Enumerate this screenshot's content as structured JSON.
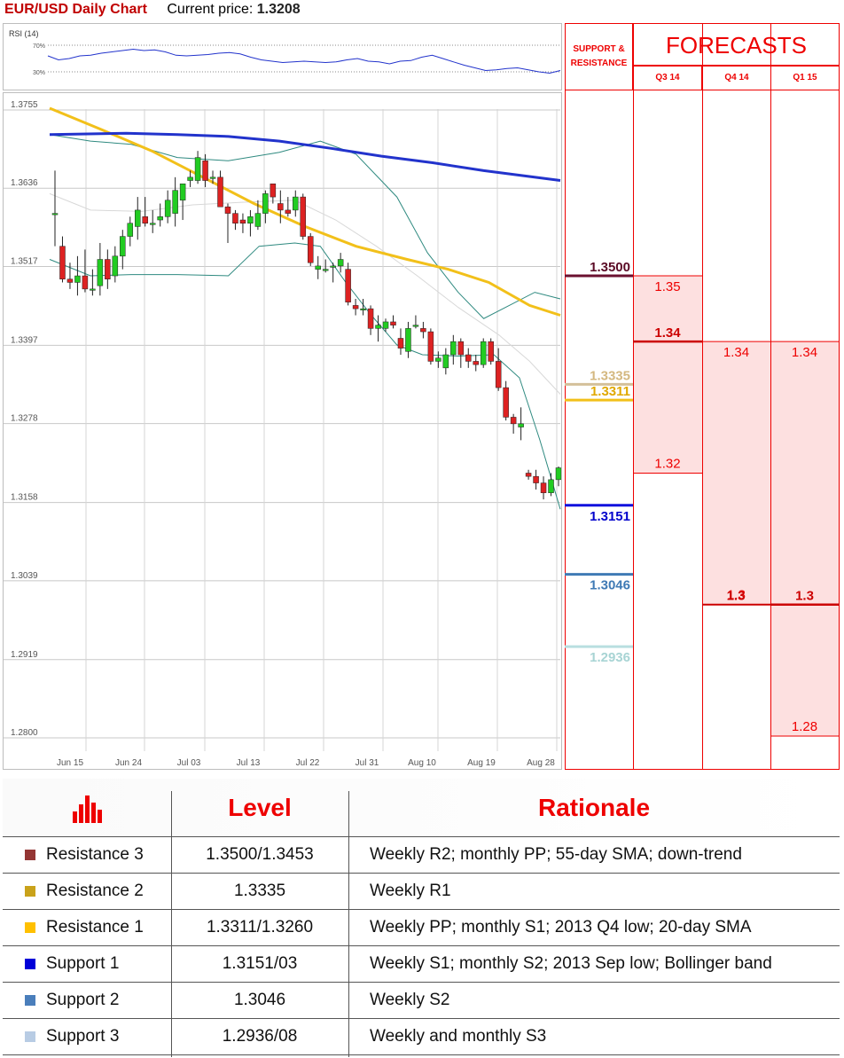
{
  "header": {
    "title": "EUR/USD Daily Chart",
    "current_label": "Current price:",
    "current_value": "1.3208"
  },
  "rsi": {
    "label": "RSI (14)",
    "levels": [
      "70%",
      "30%"
    ]
  },
  "colors": {
    "accent_red": "#e00000",
    "candle_up": "#22cc22",
    "candle_down": "#dd2222",
    "sma20": "#d8d8d8",
    "sma55": "#f2c01a",
    "sma200": "#2233cc",
    "bollinger": "#2f8a80"
  },
  "chart_data": {
    "type": "candlestick",
    "title": "EUR/USD Daily Chart",
    "y_ticks": [
      "1.3755",
      "1.3636",
      "1.3517",
      "1.3397",
      "1.3278",
      "1.3158",
      "1.3039",
      "1.2919",
      "1.2800"
    ],
    "ylim": [
      1.28,
      1.3755
    ],
    "x_ticks": [
      "Jun 15",
      "Jun 24",
      "Jul 03",
      "Jul 13",
      "Jul 22",
      "Jul 31",
      "Aug 10",
      "Aug 19",
      "Aug 28"
    ],
    "grid": true,
    "candles": [
      [
        1.3595,
        1.366,
        1.3595,
        1.3545
      ],
      [
        1.3545,
        1.356,
        1.3495,
        1.349
      ],
      [
        1.3495,
        1.352,
        1.349,
        1.348
      ],
      [
        1.349,
        1.353,
        1.35,
        1.347
      ],
      [
        1.35,
        1.354,
        1.348,
        1.3475
      ],
      [
        1.348,
        1.351,
        1.348,
        1.347
      ],
      [
        1.3485,
        1.355,
        1.3525,
        1.347
      ],
      [
        1.3525,
        1.354,
        1.3495,
        1.348
      ],
      [
        1.35,
        1.3545,
        1.353,
        1.349
      ],
      [
        1.353,
        1.357,
        1.356,
        1.351
      ],
      [
        1.356,
        1.359,
        1.358,
        1.3545
      ],
      [
        1.3575,
        1.362,
        1.36,
        1.3555
      ],
      [
        1.359,
        1.362,
        1.358,
        1.3575
      ],
      [
        1.358,
        1.36,
        1.358,
        1.3565
      ],
      [
        1.3585,
        1.361,
        1.359,
        1.3575
      ],
      [
        1.359,
        1.363,
        1.3615,
        1.358
      ],
      [
        1.3595,
        1.365,
        1.363,
        1.3575
      ],
      [
        1.3615,
        1.364,
        1.364,
        1.3585
      ],
      [
        1.3645,
        1.366,
        1.365,
        1.3635
      ],
      [
        1.3645,
        1.369,
        1.368,
        1.364
      ],
      [
        1.3675,
        1.3685,
        1.3645,
        1.3635
      ],
      [
        1.365,
        1.366,
        1.365,
        1.364
      ],
      [
        1.365,
        1.366,
        1.3605,
        1.364
      ],
      [
        1.3605,
        1.361,
        1.3595,
        1.355
      ],
      [
        1.3595,
        1.36,
        1.358,
        1.357
      ],
      [
        1.3585,
        1.3595,
        1.358,
        1.3565
      ],
      [
        1.358,
        1.36,
        1.359,
        1.356
      ],
      [
        1.3575,
        1.3615,
        1.3595,
        1.357
      ],
      [
        1.3595,
        1.363,
        1.3625,
        1.358
      ],
      [
        1.364,
        1.364,
        1.362,
        1.361
      ],
      [
        1.361,
        1.363,
        1.36,
        1.358
      ],
      [
        1.36,
        1.362,
        1.3595,
        1.359
      ],
      [
        1.36,
        1.363,
        1.362,
        1.359
      ],
      [
        1.362,
        1.3625,
        1.356,
        1.3555
      ],
      [
        1.356,
        1.3565,
        1.352,
        1.3515
      ],
      [
        1.351,
        1.353,
        1.3515,
        1.3495
      ],
      [
        1.351,
        1.3525,
        1.351,
        1.3505
      ],
      [
        1.3515,
        1.352,
        1.3515,
        1.349
      ],
      [
        1.3515,
        1.3535,
        1.3525,
        1.3505
      ],
      [
        1.351,
        1.352,
        1.346,
        1.3455
      ],
      [
        1.3455,
        1.3465,
        1.345,
        1.344
      ],
      [
        1.345,
        1.3465,
        1.345,
        1.344
      ],
      [
        1.345,
        1.3455,
        1.342,
        1.341
      ],
      [
        1.342,
        1.344,
        1.3425,
        1.34
      ],
      [
        1.342,
        1.3435,
        1.343,
        1.3415
      ],
      [
        1.343,
        1.344,
        1.3425,
        1.342
      ],
      [
        1.3405,
        1.342,
        1.339,
        1.338
      ],
      [
        1.3385,
        1.343,
        1.342,
        1.3375
      ],
      [
        1.3425,
        1.344,
        1.3425,
        1.342
      ],
      [
        1.342,
        1.343,
        1.3415,
        1.3405
      ],
      [
        1.3415,
        1.342,
        1.337,
        1.3365
      ],
      [
        1.337,
        1.3385,
        1.3375,
        1.336
      ],
      [
        1.336,
        1.339,
        1.338,
        1.335
      ],
      [
        1.338,
        1.341,
        1.34,
        1.3365
      ],
      [
        1.34,
        1.3405,
        1.338,
        1.336
      ],
      [
        1.338,
        1.339,
        1.337,
        1.336
      ],
      [
        1.337,
        1.338,
        1.3365,
        1.3355
      ],
      [
        1.3365,
        1.3405,
        1.34,
        1.336
      ],
      [
        1.34,
        1.3405,
        1.337,
        1.3365
      ],
      [
        1.337,
        1.339,
        1.333,
        1.3325
      ],
      [
        1.333,
        1.334,
        1.3285,
        1.328
      ],
      [
        1.3285,
        1.329,
        1.3275,
        1.326
      ],
      [
        1.327,
        1.33,
        1.3275,
        1.325
      ],
      [
        1.32,
        1.3205,
        1.3195,
        1.319
      ],
      [
        1.3195,
        1.3205,
        1.3185,
        1.3175
      ],
      [
        1.3185,
        1.3195,
        1.317,
        1.316
      ],
      [
        1.317,
        1.32,
        1.319,
        1.3165
      ],
      [
        1.319,
        1.321,
        1.3208,
        1.318
      ]
    ],
    "sma200": [
      [
        0,
        1.3715
      ],
      [
        0.15,
        1.3717
      ],
      [
        0.25,
        1.3715
      ],
      [
        0.35,
        1.3712
      ],
      [
        0.45,
        1.3705
      ],
      [
        0.55,
        1.3694
      ],
      [
        0.65,
        1.3682
      ],
      [
        0.75,
        1.3672
      ],
      [
        0.85,
        1.366
      ],
      [
        1,
        1.3645
      ]
    ],
    "sma55": [
      [
        0,
        1.3755
      ],
      [
        0.1,
        1.3723
      ],
      [
        0.2,
        1.369
      ],
      [
        0.3,
        1.365
      ],
      [
        0.4,
        1.361
      ],
      [
        0.5,
        1.3575
      ],
      [
        0.6,
        1.3545
      ],
      [
        0.7,
        1.3525
      ],
      [
        0.78,
        1.351
      ],
      [
        0.86,
        1.349
      ],
      [
        0.94,
        1.3455
      ],
      [
        1,
        1.344
      ]
    ],
    "bollinger_upper": [
      [
        0,
        1.3715
      ],
      [
        0.08,
        1.3705
      ],
      [
        0.16,
        1.37
      ],
      [
        0.25,
        1.368
      ],
      [
        0.35,
        1.3675
      ],
      [
        0.45,
        1.3688
      ],
      [
        0.53,
        1.3705
      ],
      [
        0.6,
        1.3685
      ],
      [
        0.68,
        1.362
      ],
      [
        0.74,
        1.3535
      ],
      [
        0.8,
        1.3475
      ],
      [
        0.85,
        1.3435
      ],
      [
        0.9,
        1.3455
      ],
      [
        0.95,
        1.3475
      ],
      [
        1,
        1.3465
      ]
    ],
    "bollinger_lower": [
      [
        0,
        1.3525
      ],
      [
        0.08,
        1.35
      ],
      [
        0.16,
        1.3502
      ],
      [
        0.25,
        1.3502
      ],
      [
        0.35,
        1.35
      ],
      [
        0.41,
        1.3545
      ],
      [
        0.48,
        1.355
      ],
      [
        0.53,
        1.3545
      ],
      [
        0.58,
        1.349
      ],
      [
        0.63,
        1.344
      ],
      [
        0.68,
        1.3395
      ],
      [
        0.73,
        1.338
      ],
      [
        0.8,
        1.3378
      ],
      [
        0.87,
        1.338
      ],
      [
        0.92,
        1.3345
      ],
      [
        0.96,
        1.325
      ],
      [
        1,
        1.3145
      ]
    ],
    "sma20": [
      [
        0,
        1.3625
      ],
      [
        0.08,
        1.36
      ],
      [
        0.18,
        1.3598
      ],
      [
        0.28,
        1.3608
      ],
      [
        0.38,
        1.3612
      ],
      [
        0.48,
        1.3615
      ],
      [
        0.56,
        1.3585
      ],
      [
        0.64,
        1.3545
      ],
      [
        0.72,
        1.35
      ],
      [
        0.8,
        1.3452
      ],
      [
        0.88,
        1.341
      ],
      [
        0.94,
        1.337
      ],
      [
        1,
        1.332
      ]
    ],
    "rsi_series": [
      54,
      48,
      50,
      54,
      55,
      58,
      60,
      62,
      64,
      62,
      63,
      60,
      55,
      54,
      55,
      56,
      58,
      59,
      57,
      52,
      48,
      46,
      44,
      45,
      46,
      45,
      44,
      45,
      48,
      50,
      46,
      45,
      42,
      46,
      47,
      52,
      55,
      50,
      45,
      40,
      36,
      32,
      33,
      35,
      36,
      33,
      30,
      28,
      32
    ]
  },
  "levels": [
    {
      "value": "1.3500",
      "y": 1.35,
      "color": "#6b1030",
      "text_color": "#5a0a25"
    },
    {
      "value": "1.3335",
      "y": 1.3335,
      "color": "#d4c09a",
      "text_color": "#d4b880"
    },
    {
      "value": "1.3311",
      "y": 1.3311,
      "color": "#f2c01a",
      "text_color": "#e0a800"
    },
    {
      "value": "1.3151",
      "y": 1.3151,
      "color": "#1111dd",
      "text_color": "#0000cc"
    },
    {
      "value": "1.3046",
      "y": 1.3046,
      "color": "#3f7ab5",
      "text_color": "#3f7ab5"
    },
    {
      "value": "1.2936",
      "y": 1.2936,
      "color": "#b9dfe0",
      "text_color": "#a8d4d4"
    }
  ],
  "forecasts": {
    "sr_title": [
      "SUPPORT &",
      "RESISTANCE"
    ],
    "title": "FORECASTS",
    "quarters": [
      "Q3 14",
      "Q4 14",
      "Q1 15"
    ],
    "cols": [
      {
        "hi": 1.35,
        "lo": 1.32,
        "hi_label": "1.35",
        "lo_label": "1.32",
        "mid": 1.34,
        "mid_label": "1.34"
      },
      {
        "hi": 1.34,
        "lo": 1.3,
        "hi_label": "1.34",
        "lo_label": "1.3"
      },
      {
        "hi": 1.34,
        "lo": 1.28,
        "hi_label": "1.34",
        "lo_label": "1.28",
        "mid": 1.3,
        "mid_label": "1.3"
      }
    ]
  },
  "table": {
    "headers": [
      "Level",
      "Rationale"
    ],
    "rows": [
      {
        "name": "Resistance 3",
        "color": "#943634",
        "level": "1.3500/1.3453",
        "rationale": "Weekly R2; monthly PP; 55-day SMA; down-trend"
      },
      {
        "name": "Resistance 2",
        "color": "#c9a21a",
        "level": "1.3335",
        "rationale": "Weekly R1"
      },
      {
        "name": "Resistance 1",
        "color": "#ffc000",
        "level": "1.3311/1.3260",
        "rationale": "Weekly PP; monthly S1; 2013 Q4 low; 20-day SMA"
      },
      {
        "name": "Support 1",
        "color": "#0000d8",
        "level": "1.3151/03",
        "rationale": "Weekly S1; monthly S2; 2013 Sep low; Bollinger band"
      },
      {
        "name": "Support 2",
        "color": "#4a7ebb",
        "level": "1.3046",
        "rationale": "Weekly S2"
      },
      {
        "name": "Support 3",
        "color": "#b8cce4",
        "level": "1.2936/08",
        "rationale": "Weekly and monthly S3"
      }
    ]
  }
}
